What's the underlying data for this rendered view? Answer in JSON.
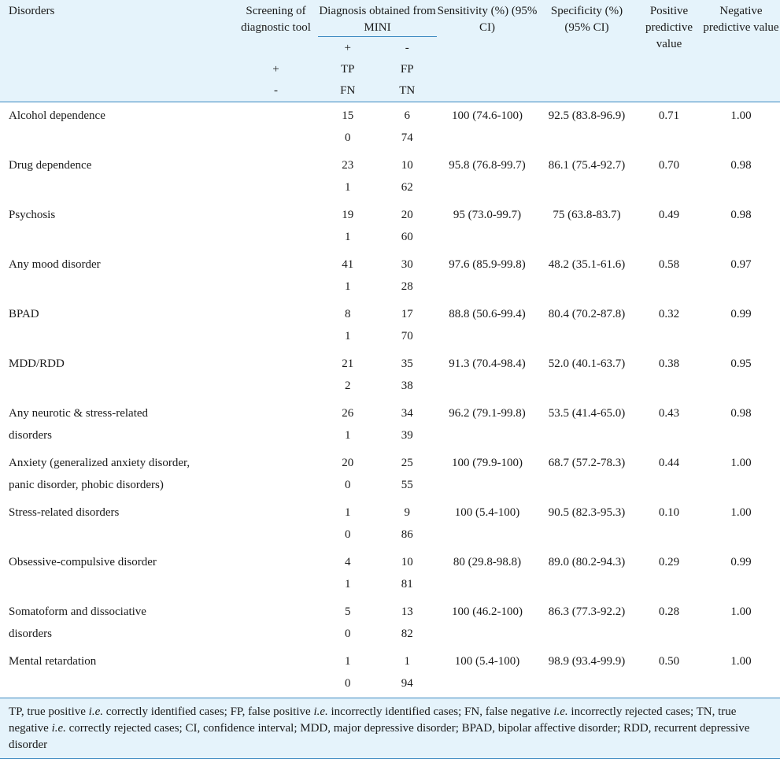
{
  "header": {
    "disorders": "Disorders",
    "screening": "Screening of diagnostic tool",
    "diagnosis": "Diagnosis obtained from MINI",
    "sensitivity": "Sensitivity (%) (95% CI)",
    "specificity": "Specificity (%) (95% CI)",
    "ppv": "Positive predictive value",
    "npv": "Negative predictive value",
    "mini_plus": "+",
    "mini_minus": "-",
    "screen_plus": "+",
    "screen_minus": "-",
    "tp": "TP",
    "fp": "FP",
    "fn": "FN",
    "tn": "TN"
  },
  "rows": [
    {
      "disorder": "Alcohol dependence",
      "tp": "15",
      "fp": "6",
      "fn": "0",
      "tn": "74",
      "sensitivity": "100 (74.6-100)",
      "specificity": "92.5 (83.8-96.9)",
      "ppv": "0.71",
      "npv": "1.00"
    },
    {
      "disorder": "Drug dependence",
      "tp": "23",
      "fp": "10",
      "fn": "1",
      "tn": "62",
      "sensitivity": "95.8 (76.8-99.7)",
      "specificity": "86.1 (75.4-92.7)",
      "ppv": "0.70",
      "npv": "0.98"
    },
    {
      "disorder": "Psychosis",
      "tp": "19",
      "fp": "20",
      "fn": "1",
      "tn": "60",
      "sensitivity": "95 (73.0-99.7)",
      "specificity": "75 (63.8-83.7)",
      "ppv": "0.49",
      "npv": "0.98"
    },
    {
      "disorder": "Any mood disorder",
      "tp": "41",
      "fp": "30",
      "fn": "1",
      "tn": "28",
      "sensitivity": "97.6 (85.9-99.8)",
      "specificity": "48.2 (35.1-61.6)",
      "ppv": "0.58",
      "npv": "0.97"
    },
    {
      "disorder": "BPAD",
      "tp": "8",
      "fp": "17",
      "fn": "1",
      "tn": "70",
      "sensitivity": "88.8 (50.6-99.4)",
      "specificity": "80.4 (70.2-87.8)",
      "ppv": "0.32",
      "npv": "0.99"
    },
    {
      "disorder": "MDD/RDD",
      "tp": "21",
      "fp": "35",
      "fn": "2",
      "tn": "38",
      "sensitivity": "91.3 (70.4-98.4)",
      "specificity": "52.0 (40.1-63.7)",
      "ppv": "0.38",
      "npv": "0.95"
    },
    {
      "disorder": "Any neurotic & stress-related",
      "disorder2": "disorders",
      "tp": "26",
      "fp": "34",
      "fn": "1",
      "tn": "39",
      "sensitivity": "96.2 (79.1-99.8)",
      "specificity": "53.5 (41.4-65.0)",
      "ppv": "0.43",
      "npv": "0.98"
    },
    {
      "disorder": "Anxiety (generalized anxiety disorder,",
      "disorder2": "panic disorder, phobic disorders)",
      "tp": "20",
      "fp": "25",
      "fn": "0",
      "tn": "55",
      "sensitivity": "100 (79.9-100)",
      "specificity": "68.7 (57.2-78.3)",
      "ppv": "0.44",
      "npv": "1.00"
    },
    {
      "disorder": "Stress-related disorders",
      "tp": "1",
      "fp": "9",
      "fn": "0",
      "tn": "86",
      "sensitivity": "100 (5.4-100)",
      "specificity": "90.5 (82.3-95.3)",
      "ppv": "0.10",
      "npv": "1.00"
    },
    {
      "disorder": "Obsessive-compulsive disorder",
      "tp": "4",
      "fp": "10",
      "fn": "1",
      "tn": "81",
      "sensitivity": "80 (29.8-98.8)",
      "specificity": "89.0 (80.2-94.3)",
      "ppv": "0.29",
      "npv": "0.99"
    },
    {
      "disorder": "Somatoform and dissociative",
      "disorder2": "disorders",
      "tp": "5",
      "fp": "13",
      "fn": "0",
      "tn": "82",
      "sensitivity": "100 (46.2-100)",
      "specificity": "86.3 (77.3-92.2)",
      "ppv": "0.28",
      "npv": "1.00"
    },
    {
      "disorder": "Mental retardation",
      "tp": "1",
      "fp": "1",
      "fn": "0",
      "tn": "94",
      "sensitivity": "100 (5.4-100)",
      "specificity": "98.9 (93.4-99.9)",
      "ppv": "0.50",
      "npv": "1.00"
    }
  ],
  "footnote": {
    "t1": "TP, true positive ",
    "ie1": "i.e.",
    "t2": " correctly identified cases; FP, false positive ",
    "ie2": "i.e.",
    "t3": " incorrectly identified cases; FN, false negative ",
    "ie3": "i.e.",
    "t4": " incorrectly rejected cases; TN, true negative ",
    "ie4": "i.e.",
    "t5": " correctly rejected cases; CI, confidence interval; MDD, major depressive disorder; BPAD, bipolar affective disorder; RDD, recurrent depressive disorder"
  }
}
